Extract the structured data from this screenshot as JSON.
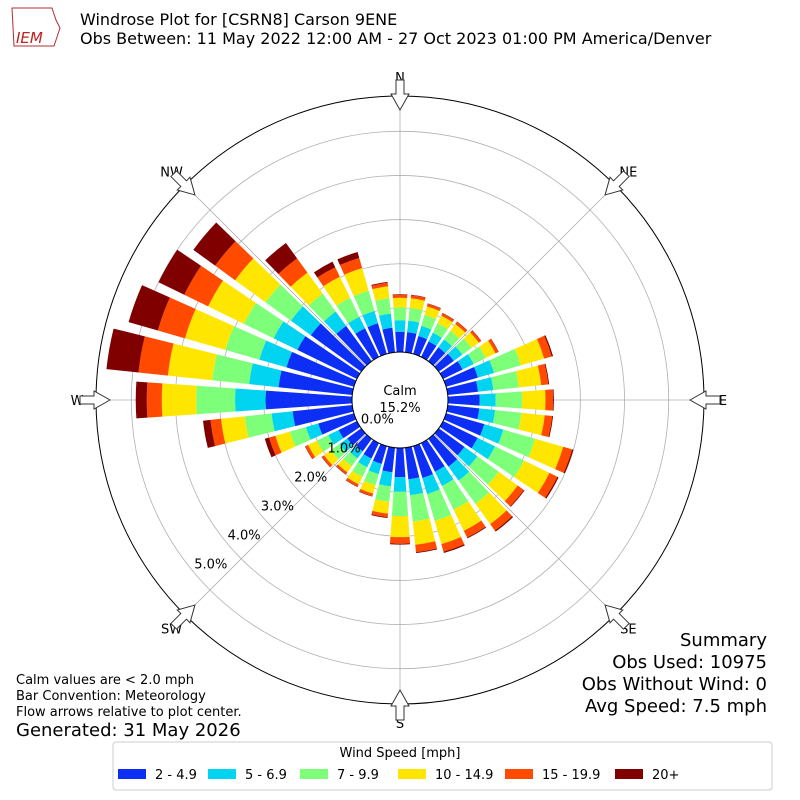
{
  "logo": "IEM",
  "chart_data": {
    "type": "windrose",
    "title": "Windrose Plot for [CSRN8] Carson 9ENE",
    "subtitle": "Obs Between: 11 May 2022 12:00 AM - 27 Oct 2023 01:00 PM America/Denver",
    "x": [
      0,
      10,
      20,
      30,
      40,
      50,
      60,
      70,
      80,
      90,
      100,
      110,
      120,
      130,
      140,
      150,
      160,
      170,
      180,
      190,
      200,
      210,
      220,
      230,
      240,
      250,
      260,
      270,
      280,
      290,
      300,
      310,
      320,
      330,
      340,
      350
    ],
    "xticks": [
      {
        "value": 0,
        "label": "N"
      },
      {
        "value": 45,
        "label": "NE"
      },
      {
        "value": 90,
        "label": "E"
      },
      {
        "value": 135,
        "label": "SE"
      },
      {
        "value": 180,
        "label": "S"
      },
      {
        "value": 225,
        "label": "SW"
      },
      {
        "value": 270,
        "label": "W"
      },
      {
        "value": 315,
        "label": "NW"
      }
    ],
    "rlim": [
      0,
      5.8
    ],
    "rticks": [
      {
        "value": 0,
        "label": "0.0%"
      },
      {
        "value": 1,
        "label": "1.0%"
      },
      {
        "value": 2,
        "label": "2.0%"
      },
      {
        "value": 3,
        "label": "3.0%"
      },
      {
        "value": 4,
        "label": "4.0%"
      },
      {
        "value": 5,
        "label": "5.0%"
      }
    ],
    "grid": true,
    "calm": {
      "label": "Calm",
      "value": 15.2,
      "value_label": "15.2%"
    },
    "legend_title": "Wind Speed [mph]",
    "series": [
      {
        "name": "2 - 4.9",
        "color": "#0d2ef5",
        "values": [
          0.46,
          0.46,
          0.42,
          0.39,
          0.39,
          0.42,
          0.49,
          0.75,
          0.69,
          0.72,
          0.72,
          0.9,
          0.87,
          0.72,
          0.78,
          0.72,
          0.75,
          0.72,
          0.66,
          0.56,
          0.42,
          0.39,
          0.35,
          0.39,
          0.46,
          0.84,
          1.36,
          1.96,
          1.68,
          1.59,
          1.5,
          1.41,
          0.99,
          0.72,
          0.72,
          0.56
        ]
      },
      {
        "name": "5 - 6.9",
        "color": "#00d4f0",
        "values": [
          0.26,
          0.26,
          0.24,
          0.22,
          0.22,
          0.24,
          0.28,
          0.38,
          0.35,
          0.36,
          0.36,
          0.45,
          0.44,
          0.36,
          0.39,
          0.36,
          0.38,
          0.36,
          0.33,
          0.32,
          0.24,
          0.22,
          0.2,
          0.22,
          0.26,
          0.29,
          0.48,
          0.69,
          0.67,
          0.64,
          0.6,
          0.56,
          0.4,
          0.29,
          0.29,
          0.32
        ]
      },
      {
        "name": "7 - 9.9",
        "color": "#7dff7a",
        "values": [
          0.29,
          0.29,
          0.26,
          0.24,
          0.24,
          0.26,
          0.31,
          0.63,
          0.58,
          0.6,
          0.6,
          0.75,
          0.73,
          0.6,
          0.65,
          0.6,
          0.63,
          0.6,
          0.55,
          0.35,
          0.26,
          0.24,
          0.22,
          0.24,
          0.29,
          0.38,
          0.61,
          0.88,
          0.84,
          0.8,
          0.75,
          0.71,
          0.5,
          0.48,
          0.48,
          0.35
        ]
      },
      {
        "name": "10 - 14.9",
        "color": "#ffe600",
        "values": [
          0.22,
          0.22,
          0.2,
          0.19,
          0.19,
          0.2,
          0.24,
          0.55,
          0.51,
          0.53,
          0.53,
          0.66,
          0.64,
          0.53,
          0.57,
          0.53,
          0.55,
          0.53,
          0.48,
          0.27,
          0.2,
          0.19,
          0.17,
          0.19,
          0.22,
          0.34,
          0.54,
          0.78,
          1.01,
          0.95,
          0.9,
          0.85,
          0.59,
          0.53,
          0.53,
          0.27
        ]
      },
      {
        "name": "15 - 19.9",
        "color": "#ff4a00",
        "values": [
          0.07,
          0.07,
          0.06,
          0.06,
          0.06,
          0.06,
          0.07,
          0.18,
          0.16,
          0.17,
          0.17,
          0.21,
          0.2,
          0.17,
          0.18,
          0.17,
          0.18,
          0.17,
          0.15,
          0.08,
          0.06,
          0.06,
          0.05,
          0.06,
          0.07,
          0.15,
          0.24,
          0.34,
          0.67,
          0.64,
          0.6,
          0.56,
          0.4,
          0.24,
          0.24,
          0.08
        ]
      },
      {
        "name": "20+",
        "color": "#800000",
        "values": [
          0.01,
          0.01,
          0.01,
          0.01,
          0.01,
          0.01,
          0.01,
          0.03,
          0.02,
          0.02,
          0.02,
          0.03,
          0.03,
          0.02,
          0.03,
          0.02,
          0.03,
          0.02,
          0.02,
          0.02,
          0.01,
          0.01,
          0.01,
          0.01,
          0.01,
          0.1,
          0.17,
          0.25,
          0.73,
          0.69,
          0.65,
          0.61,
          0.43,
          0.14,
          0.14,
          0.02
        ]
      }
    ]
  },
  "notes": [
    "Calm values are < 2.0 mph",
    "Bar Convention: Meteorology",
    "Flow arrows relative to plot center."
  ],
  "generated": "Generated: 31 May 2026",
  "summary": [
    "Summary",
    "Obs Used: 10975",
    "Obs Without Wind: 0",
    "Avg Speed: 7.5 mph"
  ]
}
